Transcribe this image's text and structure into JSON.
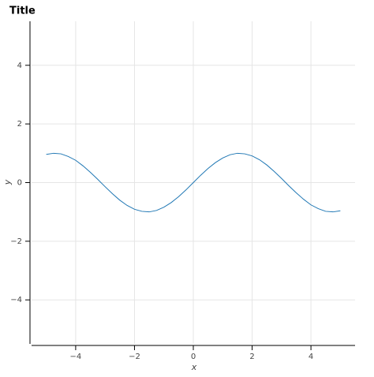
{
  "chart_data": {
    "type": "line",
    "title": "Title",
    "x_label": "x",
    "y_label": "y",
    "x": [
      -5,
      -4.75,
      -4.5,
      -4.25,
      -4,
      -3.75,
      -3.5,
      -3.25,
      -3,
      -2.75,
      -2.5,
      -2.25,
      -2,
      -1.75,
      -1.5,
      -1.25,
      -1,
      -0.75,
      -0.5,
      -0.25,
      0,
      0.25,
      0.5,
      0.75,
      1,
      1.25,
      1.5,
      1.75,
      2,
      2.25,
      2.5,
      2.75,
      3,
      3.25,
      3.5,
      3.75,
      4,
      4.25,
      4.5,
      4.75,
      5
    ],
    "series": [
      {
        "color": "#1f77b4",
        "values": [
          0.96,
          1.0,
          0.98,
          0.89,
          0.76,
          0.57,
          0.35,
          0.11,
          -0.14,
          -0.38,
          -0.6,
          -0.78,
          -0.91,
          -0.98,
          -1.0,
          -0.95,
          -0.84,
          -0.68,
          -0.48,
          -0.25,
          0,
          0.25,
          0.48,
          0.68,
          0.84,
          0.95,
          1.0,
          0.98,
          0.91,
          0.78,
          0.6,
          0.38,
          0.14,
          -0.11,
          -0.35,
          -0.57,
          -0.76,
          -0.89,
          -0.98,
          -1.0,
          -0.96
        ]
      }
    ],
    "xlim": [
      -5.5,
      5.5
    ],
    "ylim": [
      -5.5,
      5.5
    ],
    "xticks": [
      {
        "value": -4,
        "label": "−4"
      },
      {
        "value": -2,
        "label": "−2"
      },
      0,
      2,
      4
    ],
    "yticks": [
      {
        "value": -4,
        "label": "−4"
      },
      {
        "value": -2,
        "label": "−2"
      },
      0,
      2,
      4
    ],
    "grid": true
  }
}
